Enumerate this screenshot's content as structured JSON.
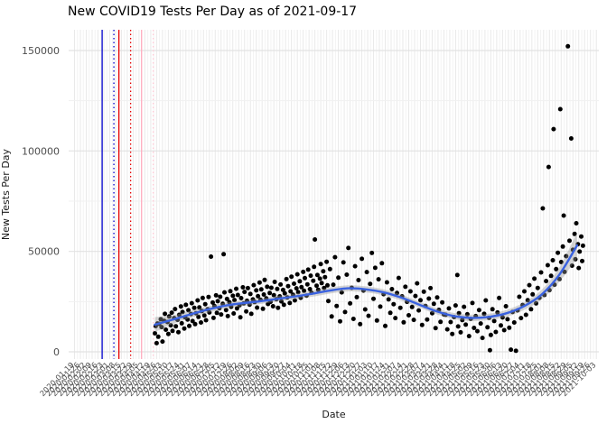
{
  "chart_data": {
    "type": "scatter",
    "title": "New COVID19 Tests Per Day as of 2021-09-17",
    "xlabel": "Date",
    "ylabel": "New Tests Per Day",
    "grid": true,
    "legend": false,
    "point_color": "#000000",
    "x_axis": {
      "domain": [
        "2020-01-12",
        "2021-10-06"
      ],
      "tick_labels": [
        "2020-01-19",
        "2020-01-26",
        "2020-02-02",
        "2020-02-09",
        "2020-02-16",
        "2020-02-23",
        "2020-03-01",
        "2020-03-08",
        "2020-03-15",
        "2020-03-22",
        "2020-03-29",
        "2020-04-05",
        "2020-04-12",
        "2020-04-19",
        "2020-04-26",
        "2020-05-03",
        "2020-05-10",
        "2020-05-17",
        "2020-05-24",
        "2020-05-31",
        "2020-06-07",
        "2020-06-14",
        "2020-06-21",
        "2020-06-28",
        "2020-07-05",
        "2020-07-12",
        "2020-07-19",
        "2020-07-26",
        "2020-08-02",
        "2020-08-09",
        "2020-08-16",
        "2020-08-23",
        "2020-08-30",
        "2020-09-06",
        "2020-09-13",
        "2020-09-20",
        "2020-09-27",
        "2020-10-04",
        "2020-10-11",
        "2020-10-18",
        "2020-10-25",
        "2020-11-01",
        "2020-11-08",
        "2020-11-15",
        "2020-11-22",
        "2020-11-29",
        "2020-12-06",
        "2020-12-13",
        "2020-12-20",
        "2020-12-27",
        "2021-01-03",
        "2021-01-10",
        "2021-01-17",
        "2021-01-24",
        "2021-01-31",
        "2021-02-07",
        "2021-02-14",
        "2021-02-21",
        "2021-02-28",
        "2021-03-07",
        "2021-03-14",
        "2021-03-21",
        "2021-03-28",
        "2021-04-04",
        "2021-04-11",
        "2021-04-18",
        "2021-04-25",
        "2021-05-02",
        "2021-05-09",
        "2021-05-16",
        "2021-05-23",
        "2021-05-30",
        "2021-06-06",
        "2021-06-13",
        "2021-06-20",
        "2021-06-27",
        "2021-07-04",
        "2021-07-11",
        "2021-07-18",
        "2021-07-25",
        "2021-08-01",
        "2021-08-08",
        "2021-08-15",
        "2021-08-22",
        "2021-08-29",
        "2021-09-05",
        "2021-09-12",
        "2021-09-19",
        "2021-09-26",
        "2021-10-03"
      ]
    },
    "y_axis": {
      "ticks": [
        0,
        50000,
        100000,
        150000
      ],
      "tick_labels": [
        "0",
        "50000",
        "100000",
        "150000"
      ],
      "ylim": [
        0,
        160000
      ]
    },
    "vlines": [
      {
        "date": "2020-02-21",
        "color": "#0000CC",
        "style": "solid"
      },
      {
        "date": "2020-03-06",
        "color": "#0000CC",
        "style": "dotted"
      },
      {
        "date": "2020-03-12",
        "color": "#E60000",
        "style": "solid"
      },
      {
        "date": "2020-03-26",
        "color": "#E60000",
        "style": "dotted"
      },
      {
        "date": "2020-04-08",
        "color": "#FFAEC0",
        "style": "solid"
      },
      {
        "date": "2020-04-22",
        "color": "#FFC9D6",
        "style": "dotted"
      }
    ],
    "smooth": {
      "color": "#3A62E0",
      "band_color": "#999999",
      "band_opacity": 0.4,
      "anchors": [
        [
          "2020-04-24",
          13500,
          3800
        ],
        [
          "2020-05-15",
          16000,
          2200
        ],
        [
          "2020-06-05",
          18600,
          1800
        ],
        [
          "2020-06-26",
          21000,
          1600
        ],
        [
          "2020-07-17",
          23000,
          1500
        ],
        [
          "2020-08-07",
          24200,
          1400
        ],
        [
          "2020-08-28",
          25200,
          1400
        ],
        [
          "2020-09-18",
          26400,
          1400
        ],
        [
          "2020-10-09",
          27600,
          1400
        ],
        [
          "2020-10-30",
          29000,
          1500
        ],
        [
          "2020-11-20",
          30600,
          1500
        ],
        [
          "2020-12-11",
          31600,
          1500
        ],
        [
          "2021-01-01",
          31100,
          1500
        ],
        [
          "2021-01-22",
          29600,
          1500
        ],
        [
          "2021-02-12",
          27000,
          1500
        ],
        [
          "2021-03-05",
          23600,
          1500
        ],
        [
          "2021-03-26",
          20200,
          1500
        ],
        [
          "2021-04-16",
          17800,
          1500
        ],
        [
          "2021-05-07",
          16900,
          1600
        ],
        [
          "2021-05-28",
          17400,
          1600
        ],
        [
          "2021-06-18",
          19200,
          1700
        ],
        [
          "2021-07-09",
          22800,
          1900
        ],
        [
          "2021-07-30",
          28600,
          2400
        ],
        [
          "2021-08-20",
          38500,
          3600
        ],
        [
          "2021-09-10",
          53000,
          6500
        ]
      ]
    },
    "series_start_date": "2020-04-24",
    "points_format": "[days_since_series_start_date, new_tests]",
    "points": [
      [
        0,
        9200
      ],
      [
        1,
        12800
      ],
      [
        2,
        4300
      ],
      [
        3,
        14100
      ],
      [
        4,
        7500
      ],
      [
        5,
        13900
      ],
      [
        7,
        16200
      ],
      [
        8,
        12300
      ],
      [
        9,
        5100
      ],
      [
        11,
        15400
      ],
      [
        12,
        18900
      ],
      [
        13,
        11000
      ],
      [
        15,
        14800
      ],
      [
        16,
        8900
      ],
      [
        17,
        17600
      ],
      [
        19,
        13200
      ],
      [
        20,
        19500
      ],
      [
        21,
        10400
      ],
      [
        23,
        16800
      ],
      [
        24,
        21300
      ],
      [
        25,
        12700
      ],
      [
        27,
        15900
      ],
      [
        28,
        9800
      ],
      [
        29,
        18400
      ],
      [
        31,
        22600
      ],
      [
        32,
        14200
      ],
      [
        33,
        19800
      ],
      [
        35,
        11600
      ],
      [
        36,
        17200
      ],
      [
        37,
        23400
      ],
      [
        39,
        16100
      ],
      [
        40,
        20700
      ],
      [
        41,
        12900
      ],
      [
        43,
        18800
      ],
      [
        44,
        24200
      ],
      [
        45,
        15300
      ],
      [
        47,
        21900
      ],
      [
        48,
        13800
      ],
      [
        49,
        19200
      ],
      [
        51,
        25600
      ],
      [
        52,
        17400
      ],
      [
        53,
        22100
      ],
      [
        55,
        14600
      ],
      [
        56,
        20300
      ],
      [
        57,
        26800
      ],
      [
        59,
        18100
      ],
      [
        60,
        23700
      ],
      [
        61,
        15700
      ],
      [
        63,
        21200
      ],
      [
        64,
        27300
      ],
      [
        65,
        19600
      ],
      [
        67,
        47400
      ],
      [
        69,
        24500
      ],
      [
        70,
        16900
      ],
      [
        71,
        22800
      ],
      [
        73,
        28100
      ],
      [
        74,
        19400
      ],
      [
        75,
        25200
      ],
      [
        77,
        21700
      ],
      [
        78,
        27400
      ],
      [
        79,
        18600
      ],
      [
        81,
        23900
      ],
      [
        82,
        48600
      ],
      [
        83,
        29600
      ],
      [
        85,
        20800
      ],
      [
        86,
        26300
      ],
      [
        87,
        17800
      ],
      [
        89,
        24700
      ],
      [
        90,
        30200
      ],
      [
        91,
        22400
      ],
      [
        93,
        27900
      ],
      [
        94,
        19100
      ],
      [
        95,
        25800
      ],
      [
        97,
        31400
      ],
      [
        98,
        21600
      ],
      [
        99,
        28300
      ],
      [
        101,
        23200
      ],
      [
        102,
        17200
      ],
      [
        103,
        26700
      ],
      [
        105,
        32100
      ],
      [
        106,
        24100
      ],
      [
        107,
        29800
      ],
      [
        109,
        20100
      ],
      [
        110,
        25400
      ],
      [
        111,
        31700
      ],
      [
        113,
        23500
      ],
      [
        114,
        28800
      ],
      [
        115,
        18900
      ],
      [
        117,
        26100
      ],
      [
        118,
        33200
      ],
      [
        119,
        24800
      ],
      [
        121,
        30600
      ],
      [
        122,
        22000
      ],
      [
        123,
        27700
      ],
      [
        125,
        34500
      ],
      [
        126,
        25900
      ],
      [
        127,
        31100
      ],
      [
        129,
        21400
      ],
      [
        130,
        28500
      ],
      [
        131,
        35800
      ],
      [
        133,
        26600
      ],
      [
        134,
        32400
      ],
      [
        135,
        23800
      ],
      [
        137,
        29300
      ],
      [
        138,
        24900
      ],
      [
        139,
        31900
      ],
      [
        141,
        22700
      ],
      [
        142,
        28200
      ],
      [
        143,
        34800
      ],
      [
        145,
        26200
      ],
      [
        146,
        31300
      ],
      [
        147,
        21900
      ],
      [
        149,
        27600
      ],
      [
        150,
        33500
      ],
      [
        151,
        25100
      ],
      [
        153,
        30800
      ],
      [
        154,
        23400
      ],
      [
        155,
        29100
      ],
      [
        157,
        36200
      ],
      [
        158,
        27100
      ],
      [
        159,
        32700
      ],
      [
        161,
        24300
      ],
      [
        162,
        30100
      ],
      [
        163,
        37400
      ],
      [
        165,
        28400
      ],
      [
        166,
        33900
      ],
      [
        167,
        25600
      ],
      [
        169,
        31600
      ],
      [
        170,
        38600
      ],
      [
        171,
        29700
      ],
      [
        173,
        35100
      ],
      [
        174,
        26900
      ],
      [
        175,
        32200
      ],
      [
        177,
        39800
      ],
      [
        178,
        30400
      ],
      [
        179,
        36700
      ],
      [
        181,
        28000
      ],
      [
        182,
        33600
      ],
      [
        183,
        40900
      ],
      [
        185,
        31200
      ],
      [
        186,
        37900
      ],
      [
        187,
        29400
      ],
      [
        189,
        35400
      ],
      [
        190,
        42300
      ],
      [
        191,
        55900
      ],
      [
        193,
        32900
      ],
      [
        194,
        38200
      ],
      [
        195,
        30900
      ],
      [
        197,
        36400
      ],
      [
        198,
        43700
      ],
      [
        199,
        34200
      ],
      [
        201,
        40100
      ],
      [
        202,
        31800
      ],
      [
        203,
        37200
      ],
      [
        205,
        44800
      ],
      [
        206,
        33100
      ],
      [
        207,
        25300
      ],
      [
        209,
        41200
      ],
      [
        211,
        17600
      ],
      [
        213,
        33400
      ],
      [
        215,
        47100
      ],
      [
        217,
        22800
      ],
      [
        219,
        36900
      ],
      [
        221,
        15200
      ],
      [
        223,
        29600
      ],
      [
        225,
        44500
      ],
      [
        227,
        19800
      ],
      [
        229,
        38400
      ],
      [
        231,
        51700
      ],
      [
        233,
        24100
      ],
      [
        235,
        31900
      ],
      [
        237,
        16400
      ],
      [
        239,
        42600
      ],
      [
        241,
        27200
      ],
      [
        243,
        35700
      ],
      [
        245,
        13800
      ],
      [
        247,
        46300
      ],
      [
        249,
        30500
      ],
      [
        251,
        21100
      ],
      [
        253,
        39700
      ],
      [
        255,
        17900
      ],
      [
        257,
        33800
      ],
      [
        259,
        49200
      ],
      [
        261,
        26400
      ],
      [
        263,
        41800
      ],
      [
        265,
        15600
      ],
      [
        267,
        36100
      ],
      [
        269,
        22500
      ],
      [
        271,
        44100
      ],
      [
        273,
        28700
      ],
      [
        275,
        12900
      ],
      [
        277,
        34600
      ],
      [
        279,
        26100
      ],
      [
        281,
        19400
      ],
      [
        283,
        31200
      ],
      [
        285,
        23700
      ],
      [
        287,
        16800
      ],
      [
        289,
        29300
      ],
      [
        291,
        36800
      ],
      [
        293,
        21900
      ],
      [
        295,
        27600
      ],
      [
        297,
        14700
      ],
      [
        299,
        32400
      ],
      [
        301,
        24900
      ],
      [
        303,
        18200
      ],
      [
        305,
        30100
      ],
      [
        307,
        22300
      ],
      [
        309,
        15900
      ],
      [
        311,
        27800
      ],
      [
        313,
        34100
      ],
      [
        315,
        20600
      ],
      [
        317,
        25700
      ],
      [
        319,
        13400
      ],
      [
        321,
        29900
      ],
      [
        323,
        22800
      ],
      [
        325,
        16100
      ],
      [
        327,
        26500
      ],
      [
        329,
        31700
      ],
      [
        331,
        19200
      ],
      [
        333,
        23900
      ],
      [
        335,
        11800
      ],
      [
        337,
        27100
      ],
      [
        339,
        20900
      ],
      [
        341,
        14900
      ],
      [
        343,
        24600
      ],
      [
        345,
        18600
      ],
      [
        347,
        18400
      ],
      [
        349,
        11200
      ],
      [
        351,
        21600
      ],
      [
        353,
        14800
      ],
      [
        355,
        8900
      ],
      [
        357,
        17300
      ],
      [
        359,
        23100
      ],
      [
        361,
        38200
      ],
      [
        362,
        12600
      ],
      [
        363,
        19200
      ],
      [
        365,
        9700
      ],
      [
        367,
        15800
      ],
      [
        369,
        22400
      ],
      [
        371,
        13500
      ],
      [
        373,
        18700
      ],
      [
        375,
        7800
      ],
      [
        377,
        16400
      ],
      [
        379,
        24300
      ],
      [
        381,
        11900
      ],
      [
        383,
        17800
      ],
      [
        385,
        10300
      ],
      [
        387,
        20800
      ],
      [
        389,
        14100
      ],
      [
        391,
        6900
      ],
      [
        393,
        18900
      ],
      [
        395,
        25600
      ],
      [
        397,
        12200
      ],
      [
        399,
        16900
      ],
      [
        400,
        800
      ],
      [
        401,
        8400
      ],
      [
        403,
        21200
      ],
      [
        405,
        15300
      ],
      [
        407,
        9900
      ],
      [
        409,
        19600
      ],
      [
        411,
        26800
      ],
      [
        413,
        13100
      ],
      [
        415,
        17100
      ],
      [
        417,
        10800
      ],
      [
        419,
        22700
      ],
      [
        421,
        16200
      ],
      [
        423,
        12000
      ],
      [
        425,
        1100
      ],
      [
        427,
        19800
      ],
      [
        429,
        14600
      ],
      [
        431,
        500
      ],
      [
        433,
        20600
      ],
      [
        435,
        27400
      ],
      [
        437,
        16800
      ],
      [
        439,
        23300
      ],
      [
        441,
        30100
      ],
      [
        443,
        18400
      ],
      [
        445,
        25700
      ],
      [
        447,
        33200
      ],
      [
        449,
        21200
      ],
      [
        451,
        28600
      ],
      [
        453,
        36400
      ],
      [
        455,
        24100
      ],
      [
        457,
        31800
      ],
      [
        459,
        26900
      ],
      [
        461,
        39500
      ],
      [
        463,
        71400
      ],
      [
        465,
        28300
      ],
      [
        467,
        35200
      ],
      [
        469,
        43100
      ],
      [
        470,
        92000
      ],
      [
        471,
        30700
      ],
      [
        473,
        37800
      ],
      [
        475,
        45600
      ],
      [
        476,
        110900
      ],
      [
        477,
        33400
      ],
      [
        479,
        41200
      ],
      [
        481,
        49300
      ],
      [
        483,
        36200
      ],
      [
        484,
        120800
      ],
      [
        485,
        44700
      ],
      [
        487,
        52400
      ],
      [
        488,
        67800
      ],
      [
        489,
        39800
      ],
      [
        491,
        47600
      ],
      [
        493,
        152100
      ],
      [
        495,
        55300
      ],
      [
        497,
        106200
      ],
      [
        498,
        42900
      ],
      [
        499,
        50800
      ],
      [
        501,
        58700
      ],
      [
        502,
        46100
      ],
      [
        503,
        64000
      ],
      [
        505,
        53600
      ],
      [
        506,
        41700
      ],
      [
        507,
        49900
      ],
      [
        509,
        57400
      ],
      [
        510,
        45200
      ],
      [
        511,
        52800
      ]
    ]
  }
}
